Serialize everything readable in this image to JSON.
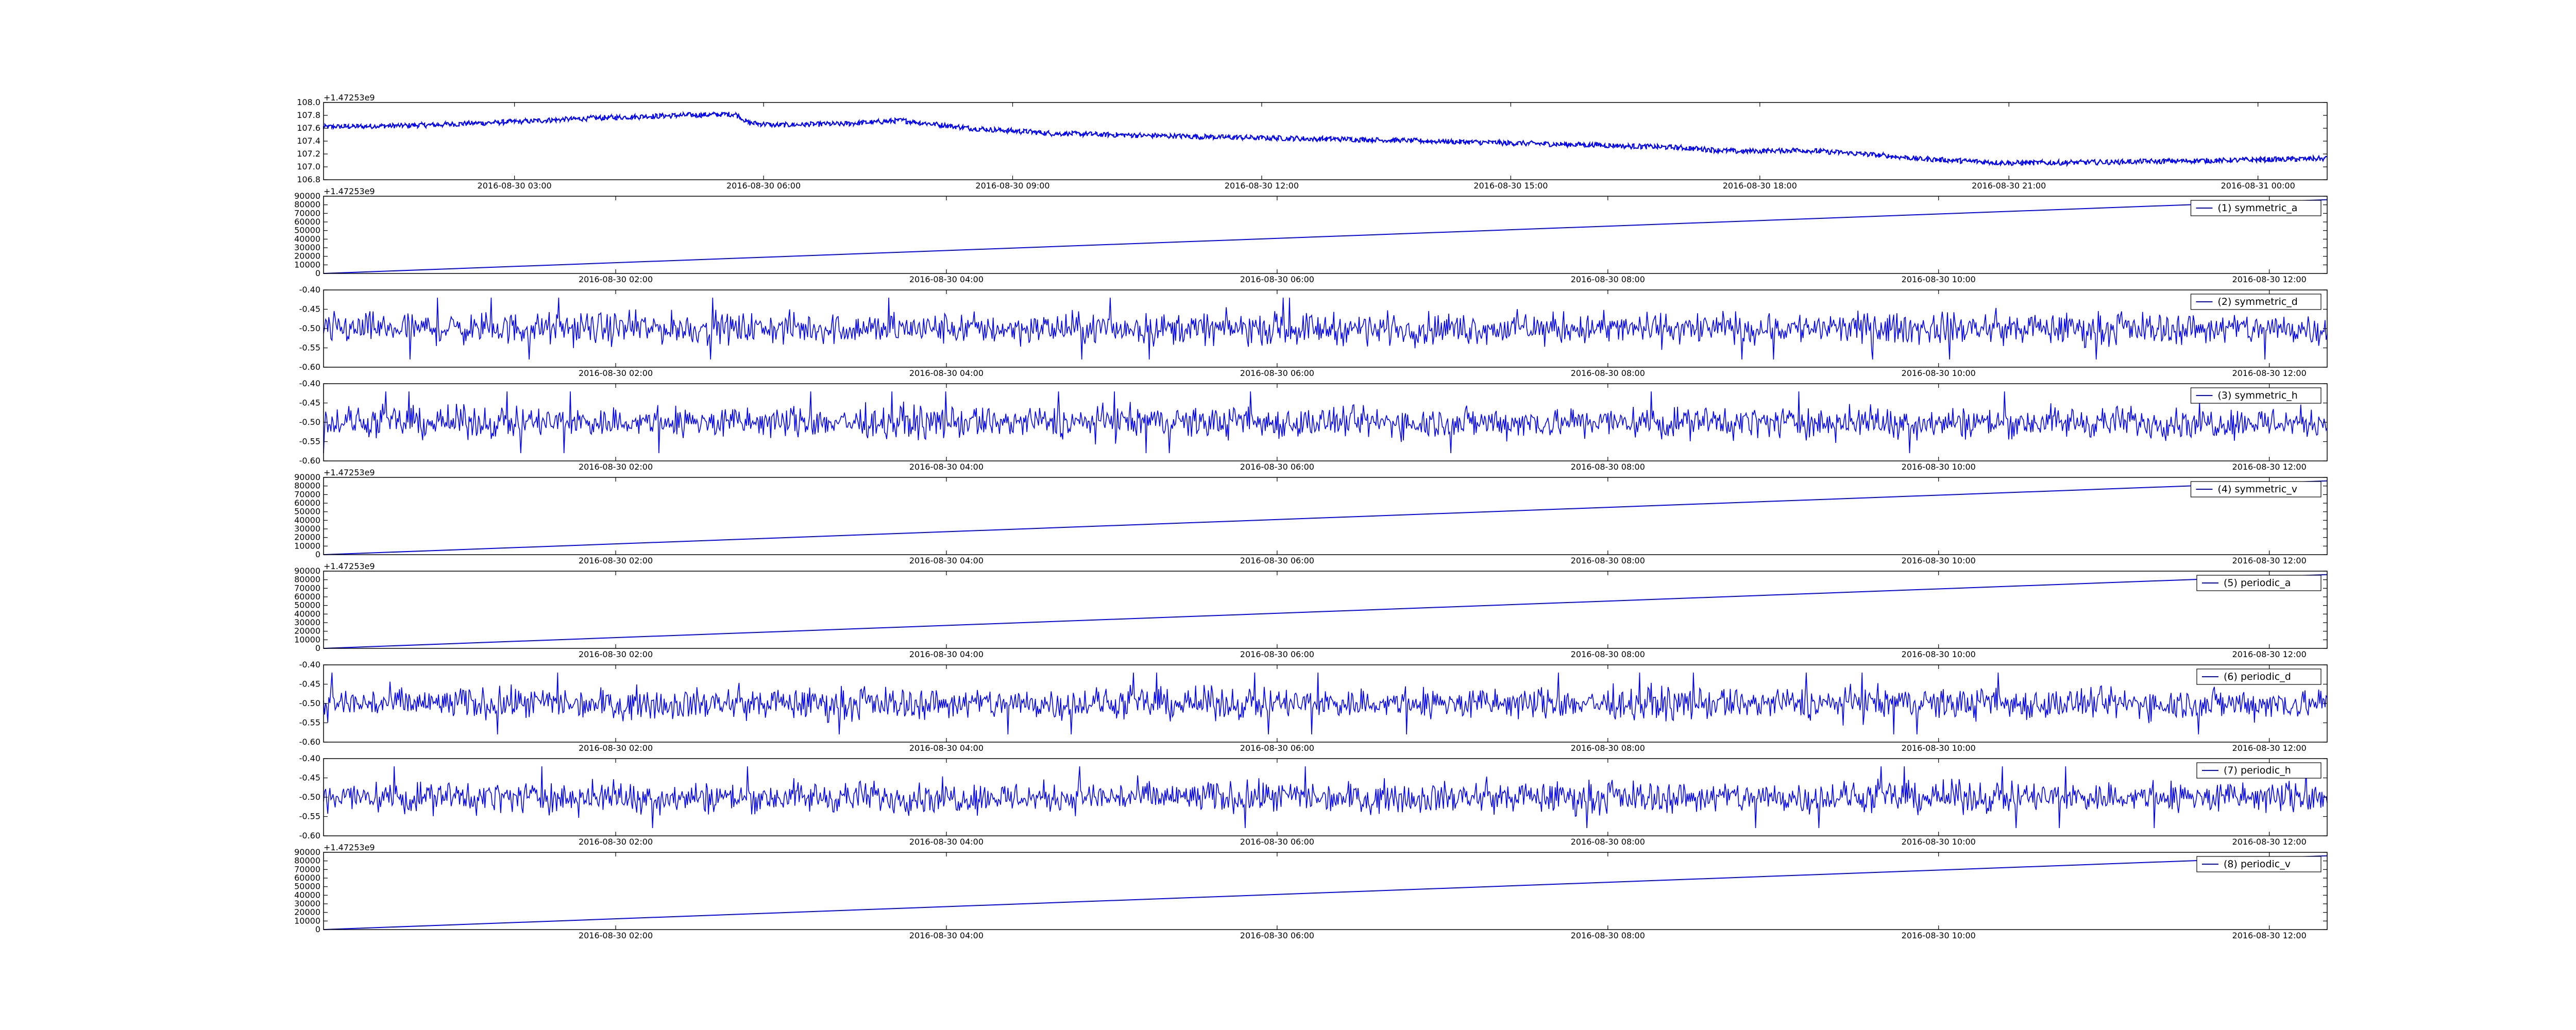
{
  "colors": {
    "line": "#0000ff",
    "axes": "#000000",
    "background": "#ffffff"
  },
  "chart_data": [
    {
      "type": "line",
      "title": "",
      "xlabel": "",
      "ylabel": "",
      "grid": false,
      "kind": "wander",
      "x_offset_label": "+1.47253e9",
      "y_ticks": [
        "106.8",
        "107.0",
        "107.2",
        "107.4",
        "107.6",
        "107.8",
        "108.0"
      ],
      "ylim": [
        106.8,
        108.0
      ],
      "x_ticks": [
        "2016-08-30 03:00",
        "2016-08-30 06:00",
        "2016-08-30 09:00",
        "2016-08-30 12:00",
        "2016-08-30 15:00",
        "2016-08-30 18:00",
        "2016-08-30 21:00",
        "2016-08-31 00:00"
      ],
      "xlim": [
        "2016-08-30 00:42",
        "2016-08-31 00:50"
      ],
      "series": [
        {
          "x": [
            "2016-08-30 00:42",
            "2016-08-30 02:00",
            "2016-08-30 03:00",
            "2016-08-30 04:00",
            "2016-08-30 05:00",
            "2016-08-30 05:40",
            "2016-08-30 05:50",
            "2016-08-30 06:10",
            "2016-08-30 07:00",
            "2016-08-30 07:40",
            "2016-08-30 08:30",
            "2016-08-30 09:30",
            "2016-08-30 10:30",
            "2016-08-30 12:00",
            "2016-08-30 13:00",
            "2016-08-30 14:00",
            "2016-08-30 15:00",
            "2016-08-30 16:00",
            "2016-08-30 17:00",
            "2016-08-30 17:45",
            "2016-08-30 18:30",
            "2016-08-30 19:15",
            "2016-08-30 20:00",
            "2016-08-30 21:00",
            "2016-08-30 22:00",
            "2016-08-30 23:00",
            "2016-08-31 00:00",
            "2016-08-31 00:50"
          ],
          "values": [
            107.62,
            107.65,
            107.7,
            107.76,
            107.8,
            107.82,
            107.68,
            107.65,
            107.67,
            107.72,
            107.6,
            107.52,
            107.49,
            107.45,
            107.43,
            107.4,
            107.37,
            107.34,
            107.3,
            107.24,
            107.26,
            107.2,
            107.12,
            107.06,
            107.07,
            107.09,
            107.11,
            107.13
          ]
        }
      ]
    },
    {
      "type": "line",
      "title": "",
      "xlabel": "",
      "ylabel": "",
      "grid": false,
      "kind": "linear",
      "x_offset_label": "+1.47253e9",
      "y_ticks": [
        "0",
        "10000",
        "20000",
        "30000",
        "40000",
        "50000",
        "60000",
        "70000",
        "80000",
        "90000"
      ],
      "ylim": [
        0,
        90000
      ],
      "x_ticks": [
        "2016-08-30 02:00",
        "2016-08-30 04:00",
        "2016-08-30 06:00",
        "2016-08-30 08:00",
        "2016-08-30 10:00",
        "2016-08-30 12:00"
      ],
      "xlim": [
        "2016-08-30 00:14",
        "2016-08-30 12:21"
      ],
      "legend_position": "top-right",
      "series": [
        {
          "name": "(1) symmetric_a",
          "x": [
            "2016-08-30 00:14",
            "2016-08-30 12:21"
          ],
          "values": [
            0,
            86000
          ]
        }
      ]
    },
    {
      "type": "line",
      "title": "",
      "xlabel": "",
      "ylabel": "",
      "grid": false,
      "kind": "noise",
      "x_offset_label": "",
      "y_ticks": [
        "-0.60",
        "-0.55",
        "-0.50",
        "-0.45",
        "-0.40"
      ],
      "ylim": [
        -0.6,
        -0.4
      ],
      "x_ticks": [
        "2016-08-30 02:00",
        "2016-08-30 04:00",
        "2016-08-30 06:00",
        "2016-08-30 08:00",
        "2016-08-30 10:00",
        "2016-08-30 12:00"
      ],
      "xlim": [
        "2016-08-30 00:14",
        "2016-08-30 12:21"
      ],
      "legend_position": "top-right",
      "series": [
        {
          "name": "(2) symmetric_d",
          "mean": -0.5,
          "range": [
            -0.58,
            -0.42
          ]
        }
      ]
    },
    {
      "type": "line",
      "title": "",
      "xlabel": "",
      "ylabel": "",
      "grid": false,
      "kind": "noise",
      "x_offset_label": "",
      "y_ticks": [
        "-0.60",
        "-0.55",
        "-0.50",
        "-0.45",
        "-0.40"
      ],
      "ylim": [
        -0.6,
        -0.4
      ],
      "x_ticks": [
        "2016-08-30 02:00",
        "2016-08-30 04:00",
        "2016-08-30 06:00",
        "2016-08-30 08:00",
        "2016-08-30 10:00",
        "2016-08-30 12:00"
      ],
      "xlim": [
        "2016-08-30 00:14",
        "2016-08-30 12:21"
      ],
      "legend_position": "top-right",
      "series": [
        {
          "name": "(3) symmetric_h",
          "mean": -0.5,
          "range": [
            -0.58,
            -0.42
          ]
        }
      ]
    },
    {
      "type": "line",
      "title": "",
      "xlabel": "",
      "ylabel": "",
      "grid": false,
      "kind": "linear",
      "x_offset_label": "+1.47253e9",
      "y_ticks": [
        "0",
        "10000",
        "20000",
        "30000",
        "40000",
        "50000",
        "60000",
        "70000",
        "80000",
        "90000"
      ],
      "ylim": [
        0,
        90000
      ],
      "x_ticks": [
        "2016-08-30 02:00",
        "2016-08-30 04:00",
        "2016-08-30 06:00",
        "2016-08-30 08:00",
        "2016-08-30 10:00",
        "2016-08-30 12:00"
      ],
      "xlim": [
        "2016-08-30 00:14",
        "2016-08-30 12:21"
      ],
      "legend_position": "top-right",
      "series": [
        {
          "name": "(4) symmetric_v",
          "x": [
            "2016-08-30 00:14",
            "2016-08-30 12:21"
          ],
          "values": [
            0,
            86000
          ]
        }
      ]
    },
    {
      "type": "line",
      "title": "",
      "xlabel": "",
      "ylabel": "",
      "grid": false,
      "kind": "linear",
      "x_offset_label": "+1.47253e9",
      "y_ticks": [
        "0",
        "10000",
        "20000",
        "30000",
        "40000",
        "50000",
        "60000",
        "70000",
        "80000",
        "90000"
      ],
      "ylim": [
        0,
        90000
      ],
      "x_ticks": [
        "2016-08-30 02:00",
        "2016-08-30 04:00",
        "2016-08-30 06:00",
        "2016-08-30 08:00",
        "2016-08-30 10:00",
        "2016-08-30 12:00"
      ],
      "xlim": [
        "2016-08-30 00:14",
        "2016-08-30 12:21"
      ],
      "legend_position": "top-right",
      "series": [
        {
          "name": "(5) periodic_a",
          "x": [
            "2016-08-30 00:14",
            "2016-08-30 12:21"
          ],
          "values": [
            0,
            86000
          ]
        }
      ]
    },
    {
      "type": "line",
      "title": "",
      "xlabel": "",
      "ylabel": "",
      "grid": false,
      "kind": "noise",
      "x_offset_label": "",
      "y_ticks": [
        "-0.60",
        "-0.55",
        "-0.50",
        "-0.45",
        "-0.40"
      ],
      "ylim": [
        -0.6,
        -0.4
      ],
      "x_ticks": [
        "2016-08-30 02:00",
        "2016-08-30 04:00",
        "2016-08-30 06:00",
        "2016-08-30 08:00",
        "2016-08-30 10:00",
        "2016-08-30 12:00"
      ],
      "xlim": [
        "2016-08-30 00:14",
        "2016-08-30 12:21"
      ],
      "legend_position": "top-right",
      "series": [
        {
          "name": "(6) periodic_d",
          "mean": -0.5,
          "range": [
            -0.58,
            -0.42
          ]
        }
      ]
    },
    {
      "type": "line",
      "title": "",
      "xlabel": "",
      "ylabel": "",
      "grid": false,
      "kind": "noise",
      "x_offset_label": "",
      "y_ticks": [
        "-0.60",
        "-0.55",
        "-0.50",
        "-0.45",
        "-0.40"
      ],
      "ylim": [
        -0.6,
        -0.4
      ],
      "x_ticks": [
        "2016-08-30 02:00",
        "2016-08-30 04:00",
        "2016-08-30 06:00",
        "2016-08-30 08:00",
        "2016-08-30 10:00",
        "2016-08-30 12:00"
      ],
      "xlim": [
        "2016-08-30 00:14",
        "2016-08-30 12:21"
      ],
      "legend_position": "top-right",
      "series": [
        {
          "name": "(7) periodic_h",
          "mean": -0.5,
          "range": [
            -0.58,
            -0.42
          ]
        }
      ]
    },
    {
      "type": "line",
      "title": "",
      "xlabel": "",
      "ylabel": "",
      "grid": false,
      "kind": "linear",
      "x_offset_label": "+1.47253e9",
      "y_ticks": [
        "0",
        "10000",
        "20000",
        "30000",
        "40000",
        "50000",
        "60000",
        "70000",
        "80000",
        "90000"
      ],
      "ylim": [
        0,
        90000
      ],
      "x_ticks": [
        "2016-08-30 02:00",
        "2016-08-30 04:00",
        "2016-08-30 06:00",
        "2016-08-30 08:00",
        "2016-08-30 10:00",
        "2016-08-30 12:00"
      ],
      "xlim": [
        "2016-08-30 00:14",
        "2016-08-30 12:21"
      ],
      "legend_position": "top-right",
      "series": [
        {
          "name": "(8) periodic_v",
          "x": [
            "2016-08-30 00:14",
            "2016-08-30 12:21"
          ],
          "values": [
            0,
            86000
          ]
        }
      ]
    }
  ]
}
